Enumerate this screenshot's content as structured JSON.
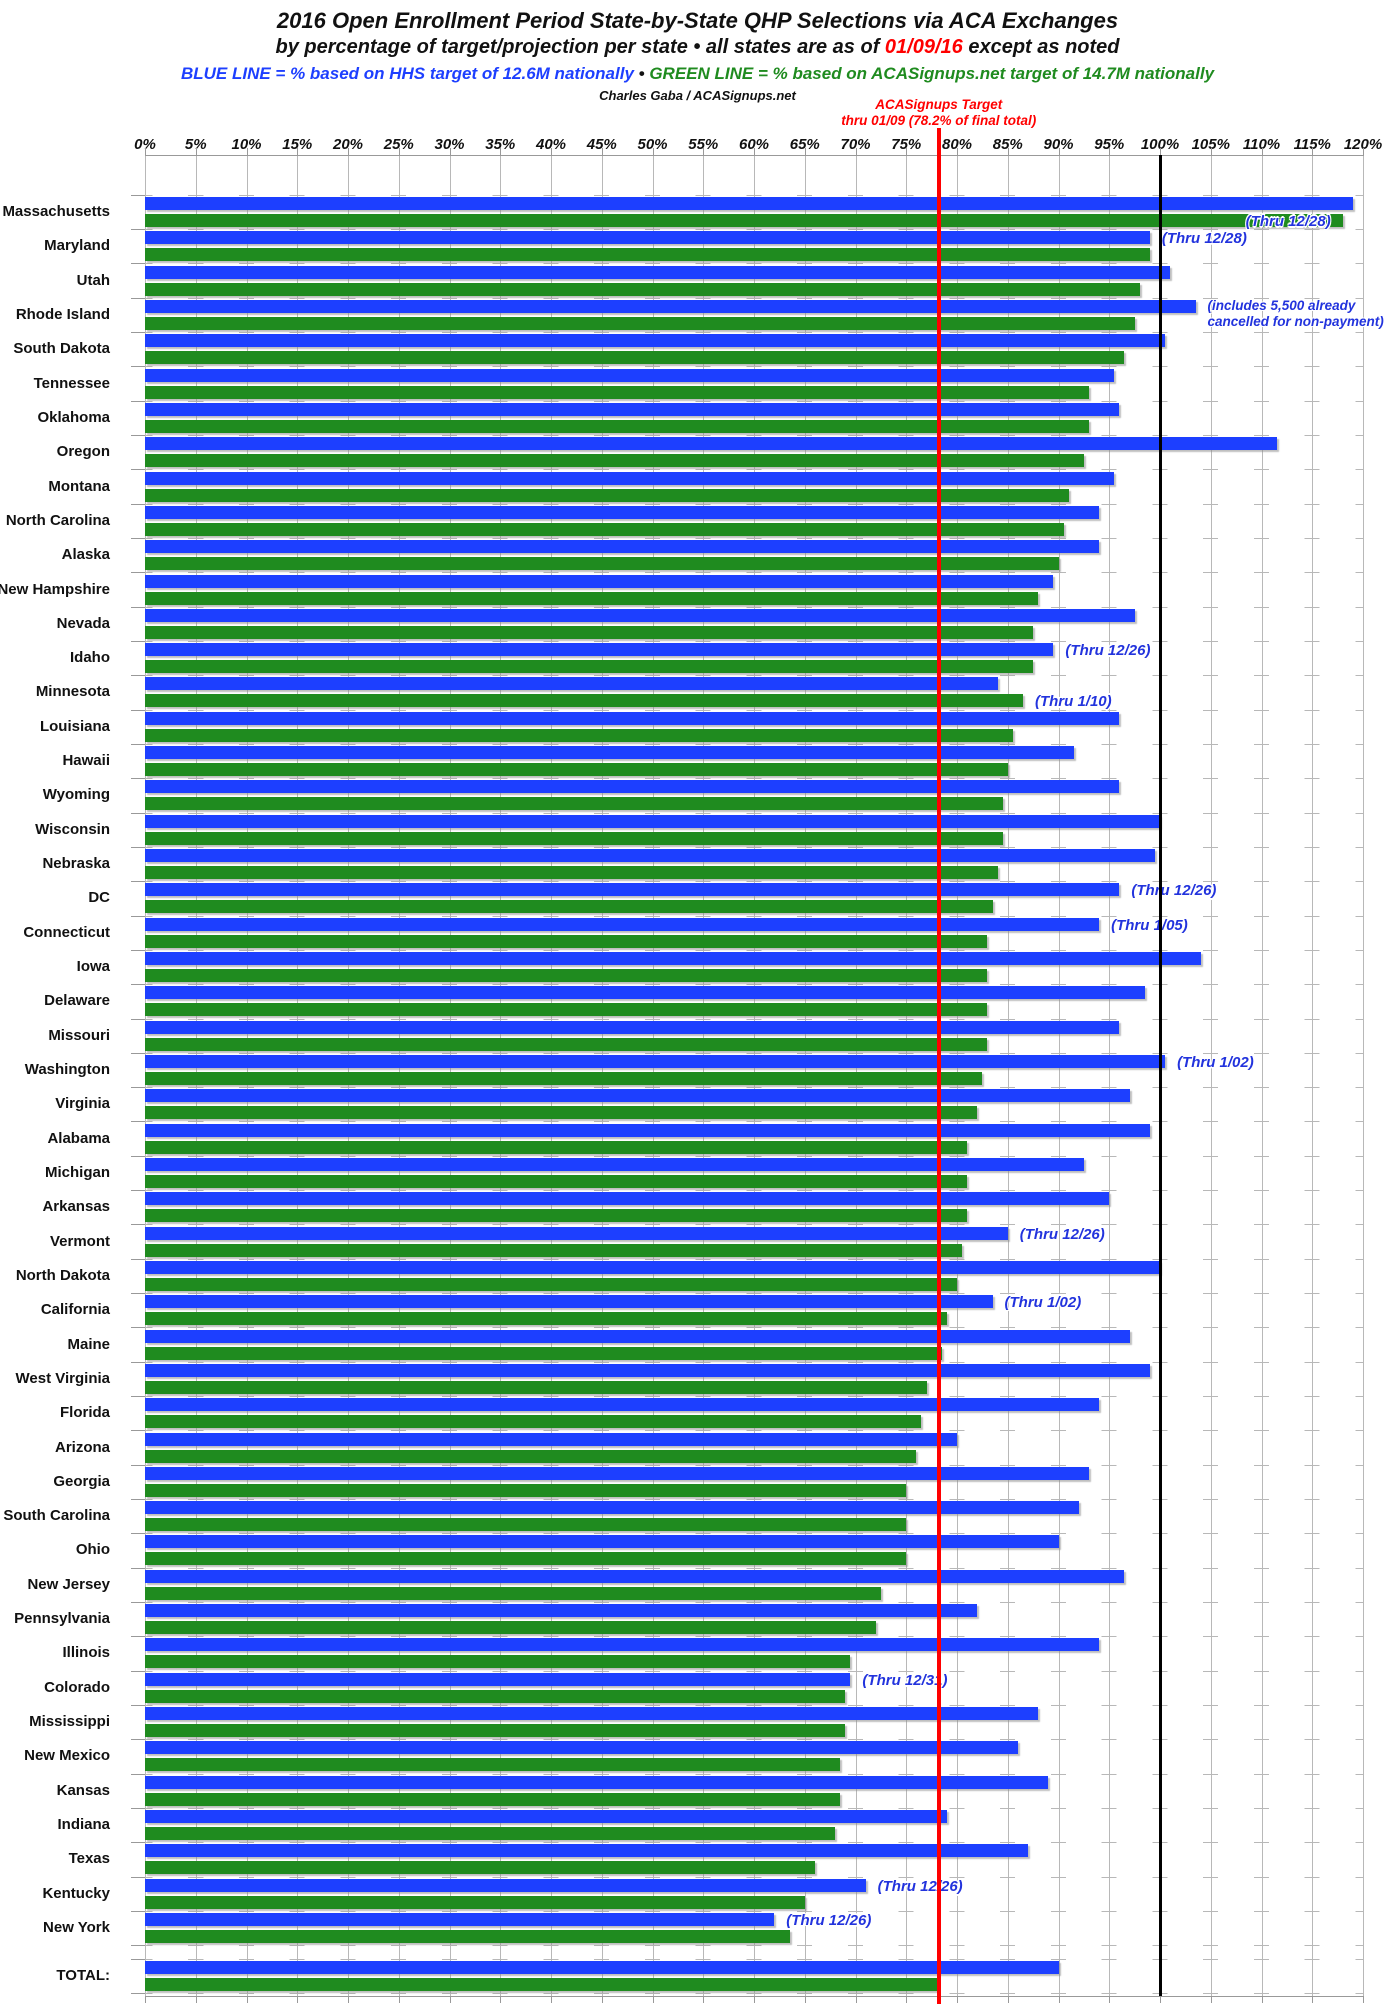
{
  "title": "2016 Open Enrollment Period State-by-State QHP Selections via ACA Exchanges",
  "subtitle": {
    "prefix": "by percentage of target/projection per state  •  all states are as of ",
    "date": "01/09/16",
    "suffix": " except as noted"
  },
  "legend": {
    "blue_text": "BLUE LINE = % based on HHS target of 12.6M nationally",
    "separator": " • ",
    "green_text": "GREEN LINE = % based on ACASignups.net target of 14.7M nationally"
  },
  "credit": "Charles Gaba / ACASignups.net",
  "target_annotation": {
    "line1": "ACASignups Target",
    "line2": "thru 01/09 (78.2% of final total)"
  },
  "colors": {
    "bar_blue": "#1d3fff",
    "bar_green": "#1f8b1f",
    "note_blue": "#2233dd",
    "target_red": "#ff0000",
    "reference_black": "#000000",
    "grid_gray": "#b8b8b8"
  },
  "chart_data": {
    "type": "bar",
    "orientation": "horizontal",
    "unit": "percent of state target",
    "axis": {
      "min": 0,
      "max": 120,
      "step": 5,
      "ticks": [
        "0%",
        "5%",
        "10%",
        "15%",
        "20%",
        "25%",
        "30%",
        "35%",
        "40%",
        "45%",
        "50%",
        "55%",
        "60%",
        "65%",
        "70%",
        "75%",
        "80%",
        "85%",
        "90%",
        "95%",
        "100%",
        "105%",
        "110%",
        "115%",
        "120%"
      ]
    },
    "target_line_pct": 78.2,
    "reference_line_pct": 100,
    "series_names": [
      "% of HHS target (blue)",
      "% of ACASignups.net target (green)"
    ],
    "rows": [
      {
        "state": "Massachusetts",
        "blue": 119,
        "green": 118,
        "note": "(Thru 12/28)",
        "note_row": "green",
        "note_overlap": true
      },
      {
        "state": "Maryland",
        "blue": 99,
        "green": 99,
        "note": "(Thru 12/28)",
        "note_row": "blue"
      },
      {
        "state": "Utah",
        "blue": 101,
        "green": 98
      },
      {
        "state": "Rhode Island",
        "blue": 103.5,
        "green": 97.5,
        "note_lines": [
          "(includes 5,500 already",
          "cancelled for non-payment)"
        ]
      },
      {
        "state": "South Dakota",
        "blue": 100.5,
        "green": 96.5
      },
      {
        "state": "Tennessee",
        "blue": 95.5,
        "green": 93
      },
      {
        "state": "Oklahoma",
        "blue": 96,
        "green": 93
      },
      {
        "state": "Oregon",
        "blue": 111.5,
        "green": 92.5
      },
      {
        "state": "Montana",
        "blue": 95.5,
        "green": 91
      },
      {
        "state": "North Carolina",
        "blue": 94,
        "green": 90.5
      },
      {
        "state": "Alaska",
        "blue": 94,
        "green": 90
      },
      {
        "state": "New Hampshire",
        "blue": 89.5,
        "green": 88
      },
      {
        "state": "Nevada",
        "blue": 97.5,
        "green": 87.5
      },
      {
        "state": "Idaho",
        "blue": 89.5,
        "green": 87.5,
        "note": "(Thru 12/26)",
        "note_row": "blue"
      },
      {
        "state": "Minnesota",
        "blue": 84,
        "green": 86.5,
        "note": "(Thru 1/10)",
        "note_row": "green"
      },
      {
        "state": "Louisiana",
        "blue": 96,
        "green": 85.5
      },
      {
        "state": "Hawaii",
        "blue": 91.5,
        "green": 85
      },
      {
        "state": "Wyoming",
        "blue": 96,
        "green": 84.5
      },
      {
        "state": "Wisconsin",
        "blue": 100,
        "green": 84.5
      },
      {
        "state": "Nebraska",
        "blue": 99.5,
        "green": 84
      },
      {
        "state": "DC",
        "blue": 96,
        "green": 83.5,
        "note": "(Thru 12/26)",
        "note_row": "blue"
      },
      {
        "state": "Connecticut",
        "blue": 94,
        "green": 83,
        "note": "(Thru 1/05)",
        "note_row": "blue"
      },
      {
        "state": "Iowa",
        "blue": 104,
        "green": 83
      },
      {
        "state": "Delaware",
        "blue": 98.5,
        "green": 83
      },
      {
        "state": "Missouri",
        "blue": 96,
        "green": 83
      },
      {
        "state": "Washington",
        "blue": 100.5,
        "green": 82.5,
        "note": "(Thru 1/02)",
        "note_row": "blue"
      },
      {
        "state": "Virginia",
        "blue": 97,
        "green": 82
      },
      {
        "state": "Alabama",
        "blue": 99,
        "green": 81
      },
      {
        "state": "Michigan",
        "blue": 92.5,
        "green": 81
      },
      {
        "state": "Arkansas",
        "blue": 95,
        "green": 81
      },
      {
        "state": "Vermont",
        "blue": 85,
        "green": 80.5,
        "note": "(Thru 12/26)",
        "note_row": "blue"
      },
      {
        "state": "North Dakota",
        "blue": 100,
        "green": 80
      },
      {
        "state": "California",
        "blue": 83.5,
        "green": 79,
        "note": "(Thru 1/02)",
        "note_row": "blue"
      },
      {
        "state": "Maine",
        "blue": 97,
        "green": 78.5
      },
      {
        "state": "West Virginia",
        "blue": 99,
        "green": 77
      },
      {
        "state": "Florida",
        "blue": 94,
        "green": 76.5
      },
      {
        "state": "Arizona",
        "blue": 80,
        "green": 76
      },
      {
        "state": "Georgia",
        "blue": 93,
        "green": 75
      },
      {
        "state": "South Carolina",
        "blue": 92,
        "green": 75
      },
      {
        "state": "Ohio",
        "blue": 90,
        "green": 75
      },
      {
        "state": "New Jersey",
        "blue": 96.5,
        "green": 72.5
      },
      {
        "state": "Pennsylvania",
        "blue": 82,
        "green": 72
      },
      {
        "state": "Illinois",
        "blue": 94,
        "green": 69.5
      },
      {
        "state": "Colorado",
        "blue": 69.5,
        "green": 69,
        "note": "(Thru 12/31)",
        "note_row": "blue"
      },
      {
        "state": "Mississippi",
        "blue": 88,
        "green": 69
      },
      {
        "state": "New Mexico",
        "blue": 86,
        "green": 68.5
      },
      {
        "state": "Kansas",
        "blue": 89,
        "green": 68.5
      },
      {
        "state": "Indiana",
        "blue": 79,
        "green": 68
      },
      {
        "state": "Texas",
        "blue": 87,
        "green": 66
      },
      {
        "state": "Kentucky",
        "blue": 71,
        "green": 65,
        "note": "(Thru 12/26)",
        "note_row": "blue"
      },
      {
        "state": "New York",
        "blue": 62,
        "green": 63.5,
        "note": "(Thru 12/26)",
        "note_row": "blue"
      }
    ],
    "total_row": {
      "label": "TOTAL:",
      "blue": 90,
      "green": 78
    }
  }
}
